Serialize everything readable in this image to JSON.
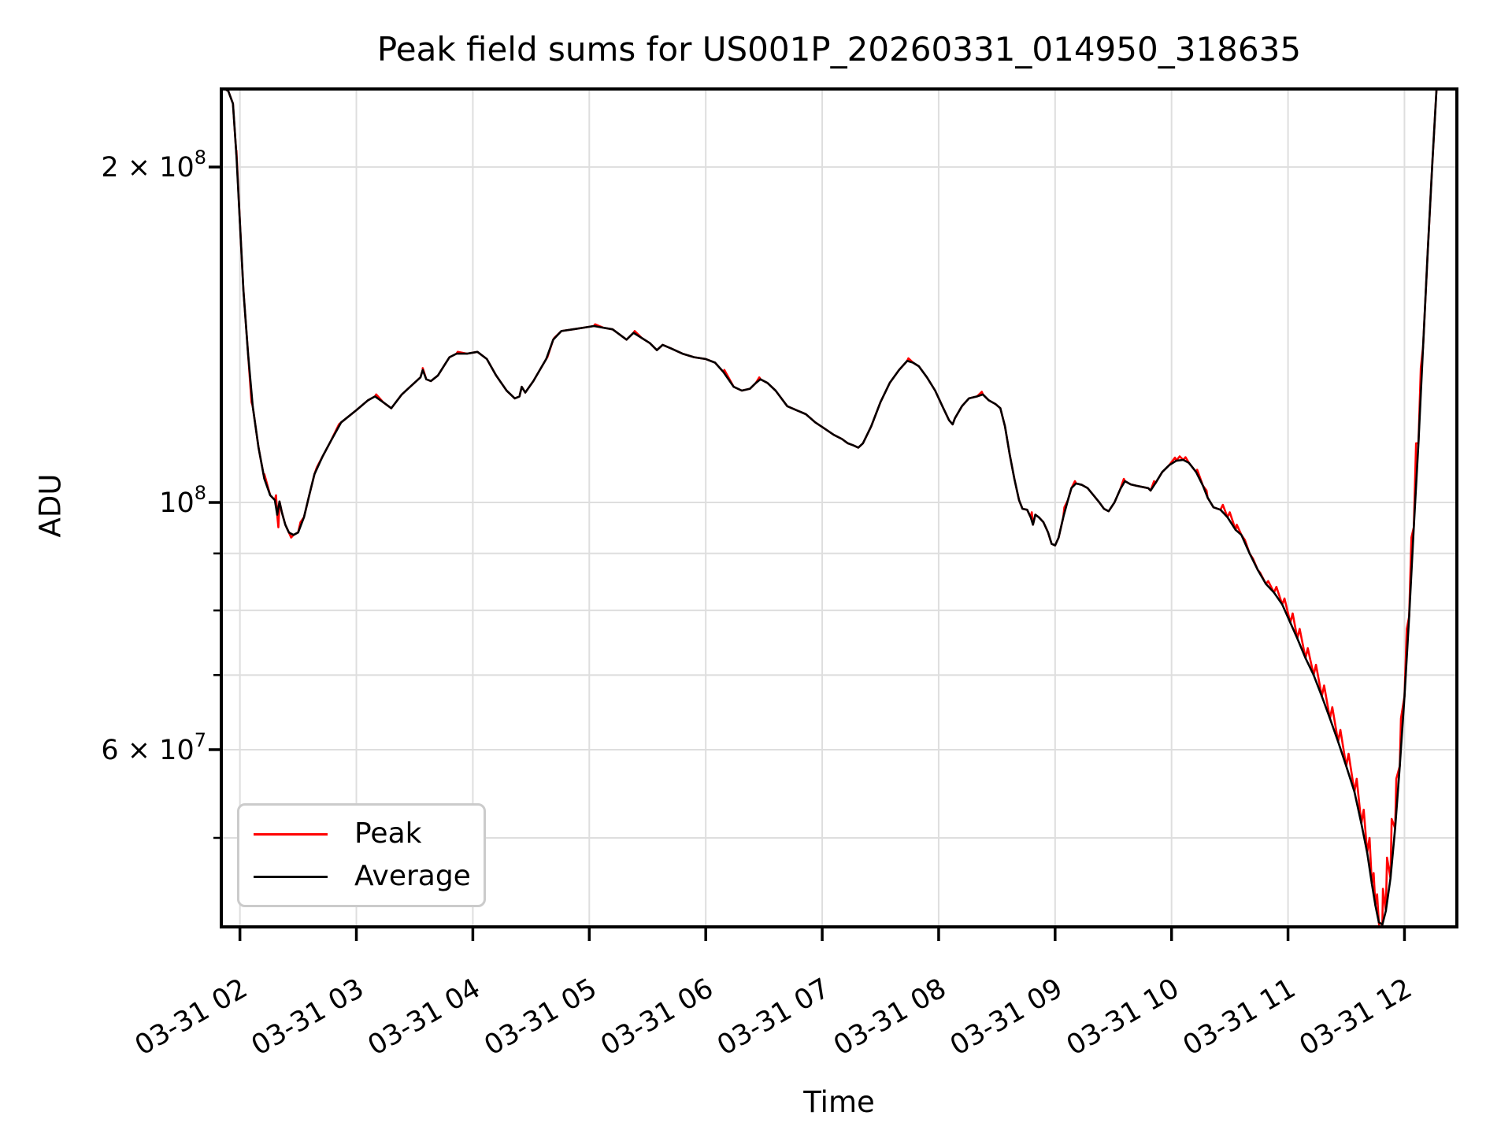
{
  "chart_data": {
    "type": "line",
    "title": "Peak field sums for US001P_20260331_014950_318635",
    "xlabel": "Time",
    "ylabel": "ADU",
    "yscale": "log",
    "grid": true,
    "x_range_hours": [
      1.84,
      12.45
    ],
    "y_range": [
      41600000.0,
      235000000.0
    ],
    "x_ticks": [
      {
        "t": 2,
        "label": "03-31 02"
      },
      {
        "t": 3,
        "label": "03-31 03"
      },
      {
        "t": 4,
        "label": "03-31 04"
      },
      {
        "t": 5,
        "label": "03-31 05"
      },
      {
        "t": 6,
        "label": "03-31 06"
      },
      {
        "t": 7,
        "label": "03-31 07"
      },
      {
        "t": 8,
        "label": "03-31 08"
      },
      {
        "t": 9,
        "label": "03-31 09"
      },
      {
        "t": 10,
        "label": "03-31 10"
      },
      {
        "t": 11,
        "label": "03-31 11"
      },
      {
        "t": 12,
        "label": "03-31 12"
      }
    ],
    "y_major_ticks": [
      {
        "value": 200000000.0,
        "text": "2 × 10",
        "sup": "8"
      },
      {
        "value": 100000000.0,
        "text": "10",
        "sup": "8"
      },
      {
        "value": 60000000.0,
        "text": "6 × 10",
        "sup": "7"
      }
    ],
    "y_minor_tick_values": [
      90000000.0,
      80000000.0,
      70000000.0,
      50000000.0
    ],
    "colors": {
      "peak": "#ff0000",
      "average": "#000000",
      "grid": "#dedede",
      "spine": "#000000"
    },
    "legend": {
      "position": "lower left",
      "entries": [
        {
          "label": "Peak",
          "color": "#ff0000"
        },
        {
          "label": "Average",
          "color": "#000000"
        }
      ]
    },
    "series": {
      "average": [
        [
          1.84,
          236000000.0
        ],
        [
          1.9,
          234000000.0
        ],
        [
          1.94,
          228000000.0
        ],
        [
          1.97,
          205000000.0
        ],
        [
          2.0,
          178000000.0
        ],
        [
          2.03,
          155000000.0
        ],
        [
          2.07,
          136000000.0
        ],
        [
          2.11,
          122000000.0
        ],
        [
          2.16,
          112000000.0
        ],
        [
          2.21,
          105000000.0
        ],
        [
          2.26,
          101500000.0
        ],
        [
          2.3,
          100500000.0
        ],
        [
          2.32,
          97500000.0
        ],
        [
          2.34,
          100200000.0
        ],
        [
          2.36,
          98000000.0
        ],
        [
          2.39,
          95500000.0
        ],
        [
          2.42,
          94000000.0
        ],
        [
          2.46,
          93500000.0
        ],
        [
          2.5,
          94000000.0
        ],
        [
          2.55,
          97000000.0
        ],
        [
          2.6,
          102000000.0
        ],
        [
          2.64,
          106000000.0
        ],
        [
          2.71,
          110000000.0
        ],
        [
          2.78,
          113500000.0
        ],
        [
          2.87,
          118000000.0
        ],
        [
          3.0,
          121000000.0
        ],
        [
          3.1,
          123500000.0
        ],
        [
          3.16,
          124500000.0
        ],
        [
          3.23,
          123000000.0
        ],
        [
          3.3,
          121500000.0
        ],
        [
          3.39,
          125000000.0
        ],
        [
          3.48,
          127500000.0
        ],
        [
          3.55,
          129500000.0
        ],
        [
          3.57,
          131500000.0
        ],
        [
          3.6,
          129000000.0
        ],
        [
          3.64,
          128500000.0
        ],
        [
          3.7,
          130000000.0
        ],
        [
          3.76,
          133000000.0
        ],
        [
          3.8,
          135000000.0
        ],
        [
          3.86,
          136000000.0
        ],
        [
          3.95,
          136000000.0
        ],
        [
          4.04,
          136500000.0
        ],
        [
          4.12,
          134500000.0
        ],
        [
          4.2,
          130000000.0
        ],
        [
          4.29,
          126000000.0
        ],
        [
          4.36,
          124000000.0
        ],
        [
          4.4,
          124500000.0
        ],
        [
          4.42,
          127000000.0
        ],
        [
          4.45,
          125500000.0
        ],
        [
          4.52,
          128500000.0
        ],
        [
          4.63,
          134500000.0
        ],
        [
          4.69,
          140000000.0
        ],
        [
          4.76,
          142500000.0
        ],
        [
          4.86,
          143000000.0
        ],
        [
          4.95,
          143500000.0
        ],
        [
          5.04,
          144000000.0
        ],
        [
          5.12,
          143500000.0
        ],
        [
          5.2,
          143000000.0
        ],
        [
          5.26,
          141500000.0
        ],
        [
          5.32,
          140000000.0
        ],
        [
          5.38,
          142000000.0
        ],
        [
          5.45,
          140500000.0
        ],
        [
          5.52,
          139000000.0
        ],
        [
          5.58,
          137000000.0
        ],
        [
          5.63,
          138500000.0
        ],
        [
          5.7,
          137500000.0
        ],
        [
          5.8,
          136000000.0
        ],
        [
          5.9,
          135000000.0
        ],
        [
          6.0,
          134500000.0
        ],
        [
          6.08,
          133500000.0
        ],
        [
          6.15,
          131000000.0
        ],
        [
          6.24,
          127000000.0
        ],
        [
          6.31,
          126000000.0
        ],
        [
          6.38,
          126500000.0
        ],
        [
          6.43,
          128000000.0
        ],
        [
          6.47,
          129000000.0
        ],
        [
          6.53,
          128000000.0
        ],
        [
          6.6,
          126000000.0
        ],
        [
          6.7,
          122000000.0
        ],
        [
          6.78,
          121000000.0
        ],
        [
          6.86,
          120000000.0
        ],
        [
          6.94,
          118000000.0
        ],
        [
          7.02,
          116500000.0
        ],
        [
          7.1,
          115000000.0
        ],
        [
          7.17,
          114000000.0
        ],
        [
          7.22,
          113000000.0
        ],
        [
          7.27,
          112500000.0
        ],
        [
          7.31,
          112000000.0
        ],
        [
          7.35,
          113000000.0
        ],
        [
          7.42,
          117000000.0
        ],
        [
          7.5,
          123000000.0
        ],
        [
          7.58,
          128000000.0
        ],
        [
          7.66,
          131500000.0
        ],
        [
          7.73,
          134000000.0
        ],
        [
          7.78,
          133500000.0
        ],
        [
          7.83,
          132500000.0
        ],
        [
          7.9,
          129500000.0
        ],
        [
          7.97,
          126000000.0
        ],
        [
          8.04,
          121500000.0
        ],
        [
          8.09,
          118500000.0
        ],
        [
          8.12,
          117500000.0
        ],
        [
          8.14,
          119000000.0
        ],
        [
          8.2,
          122000000.0
        ],
        [
          8.26,
          124000000.0
        ],
        [
          8.33,
          124500000.0
        ],
        [
          8.38,
          125000000.0
        ],
        [
          8.43,
          123500000.0
        ],
        [
          8.49,
          122500000.0
        ],
        [
          8.53,
          121500000.0
        ],
        [
          8.57,
          117000000.0
        ],
        [
          8.61,
          110500000.0
        ],
        [
          8.65,
          105000000.0
        ],
        [
          8.69,
          100500000.0
        ],
        [
          8.72,
          98700000.0
        ],
        [
          8.76,
          98500000.0
        ],
        [
          8.79,
          97000000.0
        ],
        [
          8.81,
          95500000.0
        ],
        [
          8.83,
          97500000.0
        ],
        [
          8.86,
          97000000.0
        ],
        [
          8.9,
          96000000.0
        ],
        [
          8.94,
          94000000.0
        ],
        [
          8.97,
          91800000.0
        ],
        [
          9.0,
          91500000.0
        ],
        [
          9.03,
          93000000.0
        ],
        [
          9.07,
          97000000.0
        ],
        [
          9.11,
          100500000.0
        ],
        [
          9.14,
          103000000.0
        ],
        [
          9.18,
          104000000.0
        ],
        [
          9.23,
          103700000.0
        ],
        [
          9.28,
          103000000.0
        ],
        [
          9.33,
          101500000.0
        ],
        [
          9.38,
          100000000.0
        ],
        [
          9.42,
          98700000.0
        ],
        [
          9.46,
          98200000.0
        ],
        [
          9.51,
          100000000.0
        ],
        [
          9.56,
          102800000.0
        ],
        [
          9.6,
          104500000.0
        ],
        [
          9.65,
          103800000.0
        ],
        [
          9.7,
          103500000.0
        ],
        [
          9.76,
          103200000.0
        ],
        [
          9.8,
          103000000.0
        ],
        [
          9.82,
          102500000.0
        ],
        [
          9.86,
          104000000.0
        ],
        [
          9.92,
          106500000.0
        ],
        [
          9.98,
          108000000.0
        ],
        [
          10.04,
          109000000.0
        ],
        [
          10.1,
          109200000.0
        ],
        [
          10.15,
          108500000.0
        ],
        [
          10.21,
          106500000.0
        ],
        [
          10.27,
          103500000.0
        ],
        [
          10.31,
          101000000.0
        ],
        [
          10.36,
          99000000.0
        ],
        [
          10.42,
          98500000.0
        ],
        [
          10.48,
          97000000.0
        ],
        [
          10.55,
          94500000.0
        ],
        [
          10.6,
          93500000.0
        ],
        [
          10.67,
          90000000.0
        ],
        [
          10.74,
          87000000.0
        ],
        [
          10.81,
          84500000.0
        ],
        [
          10.88,
          83000000.0
        ],
        [
          10.95,
          81000000.0
        ],
        [
          11.02,
          78000000.0
        ],
        [
          11.08,
          75500000.0
        ],
        [
          11.15,
          72500000.0
        ],
        [
          11.22,
          70000000.0
        ],
        [
          11.29,
          67000000.0
        ],
        [
          11.36,
          64000000.0
        ],
        [
          11.43,
          61000000.0
        ],
        [
          11.5,
          58000000.0
        ],
        [
          11.57,
          55000000.0
        ],
        [
          11.63,
          51500000.0
        ],
        [
          11.68,
          48500000.0
        ],
        [
          11.72,
          45500000.0
        ],
        [
          11.75,
          43500000.0
        ],
        [
          11.78,
          42000000.0
        ],
        [
          11.81,
          41800000.0
        ],
        [
          11.84,
          43000000.0
        ],
        [
          11.88,
          46000000.0
        ],
        [
          11.92,
          51000000.0
        ],
        [
          11.96,
          58000000.0
        ],
        [
          12.0,
          67000000.0
        ],
        [
          12.04,
          79000000.0
        ],
        [
          12.08,
          95000000.0
        ],
        [
          12.12,
          113000000.0
        ],
        [
          12.16,
          138000000.0
        ],
        [
          12.2,
          168000000.0
        ],
        [
          12.24,
          202000000.0
        ],
        [
          12.28,
          240000000.0
        ]
      ],
      "peak_spikes": [
        [
          1.97,
          207000000.0
        ],
        [
          2.1,
          123000000.0
        ],
        [
          2.21,
          106000000.0
        ],
        [
          2.31,
          101500000.0
        ],
        [
          2.33,
          95000000.0
        ],
        [
          2.44,
          93000000.0
        ],
        [
          2.52,
          96000000.0
        ],
        [
          2.66,
          107500000.0
        ],
        [
          2.85,
          117500000.0
        ],
        [
          3.17,
          125000000.0
        ],
        [
          3.57,
          132000000.0
        ],
        [
          3.87,
          136500000.0
        ],
        [
          4.64,
          135000000.0
        ],
        [
          4.7,
          140500000.0
        ],
        [
          5.05,
          144500000.0
        ],
        [
          5.39,
          142500000.0
        ],
        [
          6.16,
          131500000.0
        ],
        [
          6.46,
          129500000.0
        ],
        [
          7.74,
          134700000.0
        ],
        [
          8.37,
          125700000.0
        ],
        [
          8.8,
          98000000.0
        ],
        [
          9.08,
          99000000.0
        ],
        [
          9.17,
          104500000.0
        ],
        [
          9.59,
          105000000.0
        ],
        [
          9.85,
          104500000.0
        ],
        [
          10.03,
          109700000.0
        ],
        [
          10.07,
          110000000.0
        ],
        [
          10.12,
          109800000.0
        ],
        [
          10.22,
          107000000.0
        ],
        [
          10.3,
          102500000.0
        ],
        [
          10.44,
          99500000.0
        ],
        [
          10.5,
          98000000.0
        ],
        [
          10.56,
          95500000.0
        ],
        [
          10.63,
          92500000.0
        ],
        [
          10.7,
          89000000.0
        ],
        [
          10.76,
          86500000.0
        ],
        [
          10.83,
          85000000.0
        ],
        [
          10.9,
          84000000.0
        ],
        [
          10.97,
          82000000.0
        ],
        [
          11.04,
          79500000.0
        ],
        [
          11.1,
          77000000.0
        ],
        [
          11.17,
          74000000.0
        ],
        [
          11.24,
          71500000.0
        ],
        [
          11.31,
          68500000.0
        ],
        [
          11.38,
          65500000.0
        ],
        [
          11.45,
          62500000.0
        ],
        [
          11.52,
          59500000.0
        ],
        [
          11.59,
          56500000.0
        ],
        [
          11.65,
          53000000.0
        ],
        [
          11.7,
          50000000.0
        ],
        [
          11.735,
          46500000.0
        ],
        [
          11.765,
          44500000.0
        ],
        [
          11.79,
          41000000.0
        ],
        [
          11.815,
          45000000.0
        ],
        [
          11.85,
          48000000.0
        ],
        [
          11.89,
          52000000.0
        ],
        [
          11.93,
          56500000.0
        ],
        [
          11.97,
          64000000.0
        ],
        [
          12.02,
          77000000.0
        ],
        [
          12.06,
          93000000.0
        ],
        [
          12.1,
          113000000.0
        ],
        [
          12.14,
          132000000.0
        ]
      ]
    }
  }
}
